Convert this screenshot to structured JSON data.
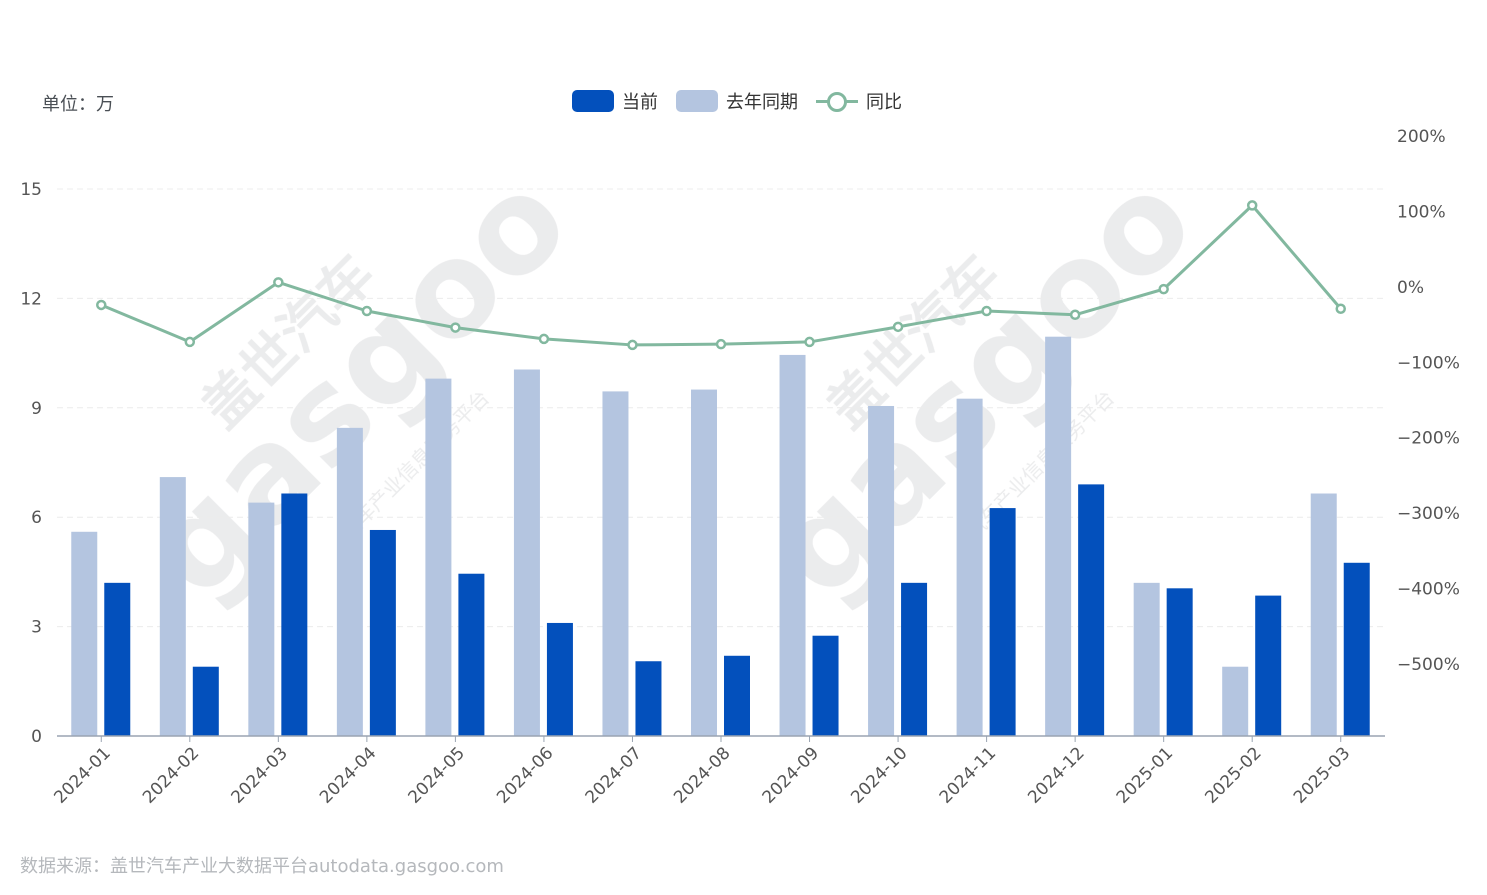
{
  "unit_label": "单位：万",
  "legend": [
    {
      "label": "当前",
      "color": "#0350bc",
      "kind": "bar"
    },
    {
      "label": "去年同期",
      "color": "#b4c5e0",
      "kind": "bar"
    },
    {
      "label": "同比",
      "color": "#82b89f",
      "kind": "line"
    }
  ],
  "source_note": "数据来源：盖世汽车产业大数据平台autodata.gasgoo.com",
  "watermark": {
    "brand": "盖世汽车",
    "logo": "gasgoo",
    "tagline": "汽车产业信息服务平台"
  },
  "chart_data": {
    "type": "bar",
    "categories": [
      "2024-01",
      "2024-02",
      "2024-03",
      "2024-04",
      "2024-05",
      "2024-06",
      "2024-07",
      "2024-08",
      "2024-09",
      "2024-10",
      "2024-11",
      "2024-12",
      "2025-01",
      "2025-02",
      "2025-03"
    ],
    "series": [
      {
        "name": "去年同期",
        "type": "bar",
        "axis": "left",
        "color": "#b4c5e0",
        "values": [
          5.6,
          7.1,
          6.4,
          8.45,
          9.8,
          10.05,
          9.45,
          9.5,
          10.45,
          9.05,
          9.25,
          10.95,
          4.2,
          1.9,
          6.65
        ]
      },
      {
        "name": "当前",
        "type": "bar",
        "axis": "left",
        "color": "#0350bc",
        "values": [
          4.2,
          1.9,
          6.65,
          5.65,
          4.45,
          3.1,
          2.05,
          2.2,
          2.75,
          4.2,
          6.25,
          6.9,
          4.05,
          3.85,
          4.75
        ]
      },
      {
        "name": "同比",
        "type": "line",
        "axis": "right",
        "color": "#82b89f",
        "values": [
          -24,
          -73,
          6,
          -32,
          -54,
          -69,
          -77,
          -76,
          -73,
          -53,
          -32,
          -37,
          -3,
          108,
          -29
        ]
      }
    ],
    "left_axis": {
      "ticks": [
        "0",
        "3",
        "6",
        "9",
        "12",
        "15"
      ],
      "range": [
        0,
        15
      ]
    },
    "right_axis": {
      "ticks": [
        "200%",
        "100%",
        "0%",
        "−100%",
        "−200%",
        "−300%",
        "−400%",
        "−500%"
      ],
      "range": [
        -500,
        200
      ]
    },
    "grid": true,
    "legend_position": "top-center"
  }
}
